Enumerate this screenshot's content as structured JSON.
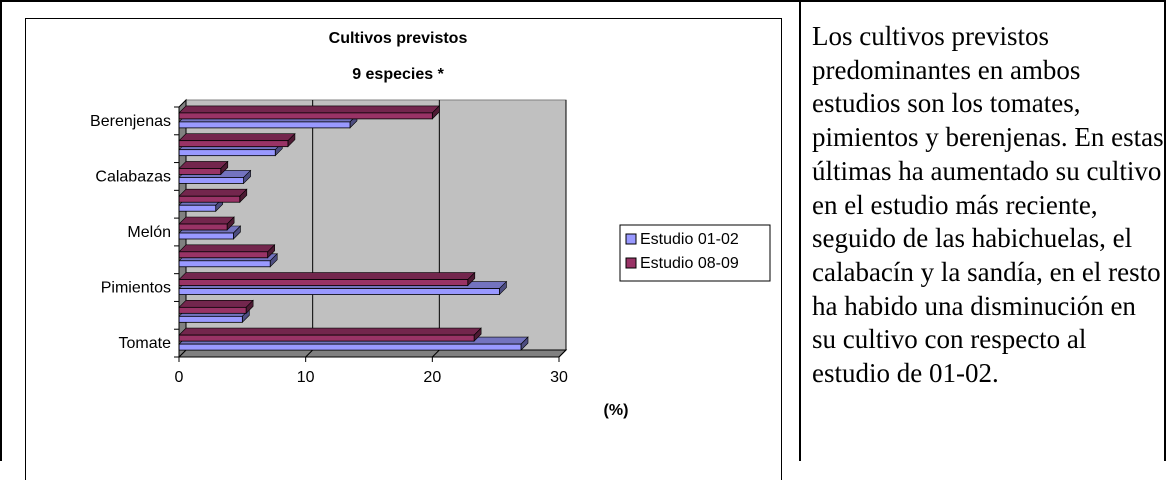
{
  "chart_data": {
    "type": "bar",
    "orientation": "horizontal",
    "title": "Cultivos previstos",
    "subtitle": "9 especies *",
    "xlabel": "(%)",
    "xlim": [
      0,
      30
    ],
    "xticks": [
      0,
      10,
      20,
      30
    ],
    "categories": [
      "Tomate",
      "",
      "Pimientos",
      "",
      "Melón",
      "",
      "Calabazas",
      "",
      "Berenjenas"
    ],
    "series": [
      {
        "name": "Estudio 01-02",
        "color": "#9999ff",
        "values": [
          27.0,
          5.0,
          25.3,
          7.2,
          4.3,
          2.9,
          5.1,
          7.6,
          13.5
        ]
      },
      {
        "name": "Estudio 08-09",
        "color": "#993366",
        "values": [
          23.3,
          5.3,
          22.8,
          7.0,
          3.8,
          4.8,
          3.3,
          8.6,
          20.0
        ]
      }
    ],
    "grid": true,
    "legend_position": "right",
    "plot_background": "#c0c0c0"
  },
  "text": "Los cultivos previstos predominantes en ambos estudios son los tomates, pimientos y berenjenas. En estas últimas ha aumentado su cultivo en el estudio más reciente, seguido de las habichuelas, el calabacín y la sandía, en el resto ha habido una disminución en su cultivo con respecto al estudio de 01-02."
}
